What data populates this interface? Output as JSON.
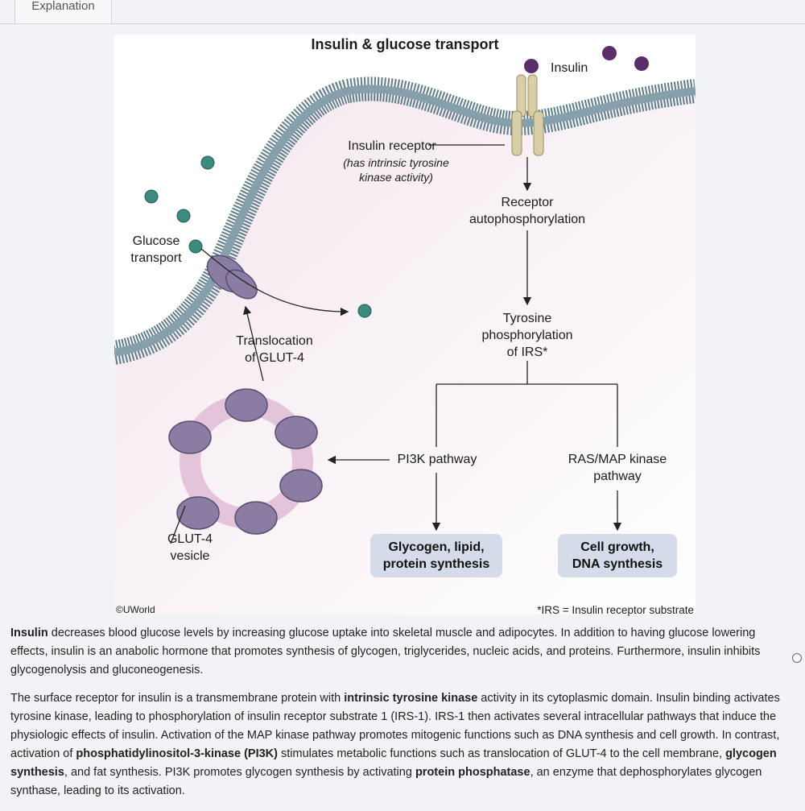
{
  "tab": {
    "label": "Explanation"
  },
  "figure": {
    "title": "Insulin & glucose transport",
    "insulin_label": "Insulin",
    "receptor_label": "Insulin receptor",
    "receptor_note_1": "(has intrinsic tyrosine",
    "receptor_note_2": "kinase activity)",
    "autophos_1": "Receptor",
    "autophos_2": "autophosphorylation",
    "tyrosine_1": "Tyrosine",
    "tyrosine_2": "phosphorylation",
    "tyrosine_3": "of IRS*",
    "glucose_transport_1": "Glucose",
    "glucose_transport_2": "transport",
    "translocation_1": "Translocation",
    "translocation_2": "of GLUT-4",
    "pi3k": "PI3K pathway",
    "ras_1": "RAS/MAP kinase",
    "ras_2": "pathway",
    "box1_1": "Glycogen, lipid,",
    "box1_2": "protein synthesis",
    "box2_1": "Cell growth,",
    "box2_2": "DNA synthesis",
    "vesicle_1": "GLUT-4",
    "vesicle_2": "vesicle",
    "copyright": "©UWorld",
    "footnote": "*IRS = Insulin receptor substrate"
  },
  "paragraph1": {
    "b1": "Insulin",
    "t1": " decreases blood glucose levels by increasing glucose uptake into skeletal muscle and adipocytes.  In addition to having glucose lowering effects, insulin is an anabolic hormone that promotes synthesis of glycogen, triglycerides, nucleic acids, and proteins.  Furthermore, insulin inhibits glycogenolysis and gluconeogenesis."
  },
  "paragraph2": {
    "t1": "The surface receptor for insulin is a transmembrane protein with ",
    "b1": "intrinsic tyrosine kinase",
    "t2": " activity in its cytoplasmic domain.  Insulin binding activates tyrosine kinase, leading to phosphorylation of insulin receptor substrate 1 (IRS-1).  IRS-1 then activates several intracellular pathways that induce the physiologic effects of insulin.  Activation of the MAP kinase pathway promotes mitogenic functions such as DNA synthesis and cell growth.  In contrast, activation of ",
    "b2": "phosphatidylinositol-3-kinase (PI3K)",
    "t3": " stimulates metabolic functions such as translocation of GLUT-4 to the cell membrane, ",
    "b3": "glycogen synthesis",
    "t4": ", and fat synthesis.  PI3K promotes glycogen synthesis by activating ",
    "b4": "protein phosphatase",
    "t5": ", an enzyme that dephosphorylates glycogen synthase, leading to its activation."
  }
}
